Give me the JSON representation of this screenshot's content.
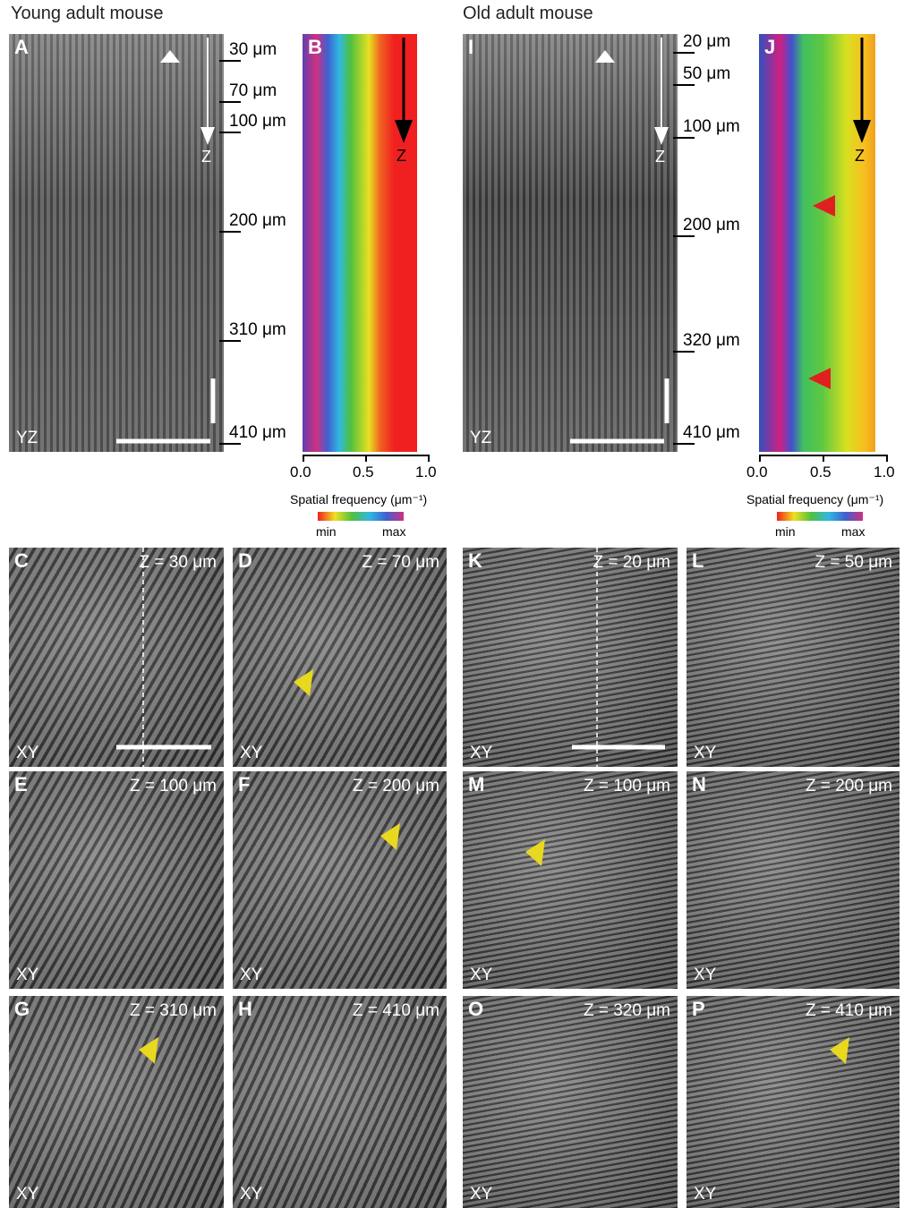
{
  "titles": [
    "Young adult mouse",
    "Old adult mouse"
  ],
  "yz_panels": [
    {
      "letter": "A",
      "view": "YZ",
      "arrow_label": "Z",
      "depths": [
        "30 μm",
        "70 μm",
        "100 μm",
        "200 μm",
        "310 μm",
        "410 μm"
      ]
    },
    {
      "letter": "I",
      "view": "YZ",
      "arrow_label": "Z",
      "depths": [
        "20 μm",
        "50 μm",
        "100 μm",
        "200 μm",
        "320 μm",
        "410 μm"
      ]
    }
  ],
  "spectra": [
    {
      "letter": "B",
      "arrow_label": "Z",
      "xticks": [
        "0.0",
        "0.5",
        "1.0"
      ],
      "xlabel": "Spatial frequency (μm⁻¹)",
      "colorbar": [
        "min",
        "max"
      ]
    },
    {
      "letter": "J",
      "arrow_label": "Z",
      "xticks": [
        "0.0",
        "0.5",
        "1.0"
      ],
      "xlabel": "Spatial frequency (μm⁻¹)",
      "colorbar": [
        "min",
        "max"
      ]
    }
  ],
  "xy_panels": [
    {
      "letter": "C",
      "z": "Z = 30 μm",
      "view": "XY"
    },
    {
      "letter": "D",
      "z": "Z = 70 μm",
      "view": "XY"
    },
    {
      "letter": "E",
      "z": "Z = 100 μm",
      "view": "XY"
    },
    {
      "letter": "F",
      "z": "Z = 200 μm",
      "view": "XY"
    },
    {
      "letter": "G",
      "z": "Z = 310 μm",
      "view": "XY"
    },
    {
      "letter": "H",
      "z": "Z = 410 μm",
      "view": "XY"
    },
    {
      "letter": "K",
      "z": "Z = 20 μm",
      "view": "XY"
    },
    {
      "letter": "L",
      "z": "Z = 50 μm",
      "view": "XY"
    },
    {
      "letter": "M",
      "z": "Z = 100 μm",
      "view": "XY"
    },
    {
      "letter": "N",
      "z": "Z = 200 μm",
      "view": "XY"
    },
    {
      "letter": "O",
      "z": "Z = 320 μm",
      "view": "XY"
    },
    {
      "letter": "P",
      "z": "Z = 410 μm",
      "view": "XY"
    }
  ]
}
